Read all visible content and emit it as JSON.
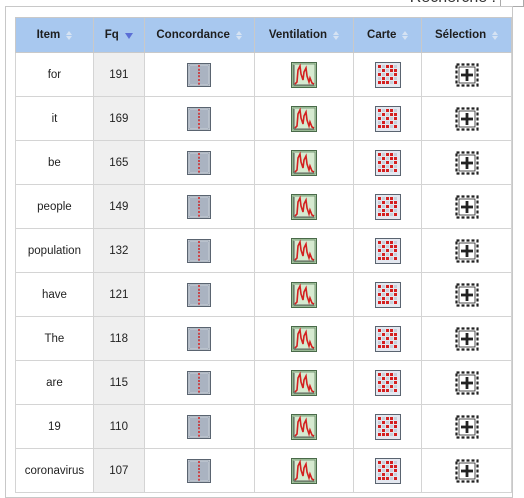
{
  "search": {
    "label": "Recherche :",
    "value": ""
  },
  "table": {
    "headers": {
      "item": "Item",
      "fq": "Fq",
      "concordance": "Concordance",
      "ventilation": "Ventilation",
      "carte": "Carte",
      "selection": "Sélection"
    },
    "sorted_column": "fq",
    "sort_direction": "descending",
    "rows": [
      {
        "item": "for",
        "fq": "191"
      },
      {
        "item": "it",
        "fq": "169"
      },
      {
        "item": "be",
        "fq": "165"
      },
      {
        "item": "people",
        "fq": "149"
      },
      {
        "item": "population",
        "fq": "132"
      },
      {
        "item": "have",
        "fq": "121"
      },
      {
        "item": "The",
        "fq": "118"
      },
      {
        "item": "are",
        "fq": "115"
      },
      {
        "item": "19",
        "fq": "110"
      },
      {
        "item": "coronavirus",
        "fq": "107"
      }
    ],
    "row_icons": {
      "concordance": "concordance-icon",
      "ventilation": "ventilation-chart-icon",
      "carte": "map-grid-icon",
      "selection": "add-selection-icon"
    }
  },
  "colors": {
    "header_bg": "#a8c8ef",
    "fq_col_bg": "#efefef",
    "sort_active": "#5b6fd6",
    "chart_red": "#d42020"
  }
}
